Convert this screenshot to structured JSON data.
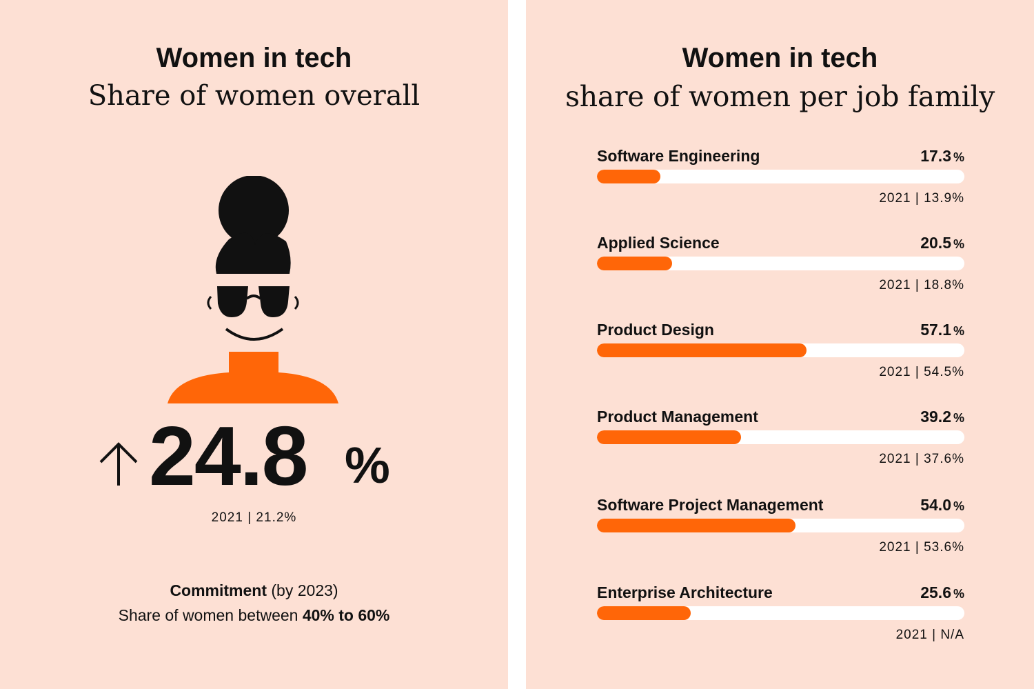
{
  "left": {
    "title": "Women in tech",
    "subtitle": "Share of women overall",
    "value": "24.8",
    "unit": "%",
    "trend_icon": "arrow-up-icon",
    "prev_year": "2021 | 21.2%",
    "commitment_bold": "Commitment",
    "commitment_rest": " (by 2023)",
    "share_text": "Share of women between ",
    "share_range": "40% to 60%",
    "illustration": "woman-with-sunglasses-icon"
  },
  "right": {
    "title": "Women in tech",
    "subtitle": "share of women per job family"
  },
  "colors": {
    "background": "#fde0d4",
    "accent": "#ff6608",
    "track": "#ffffff",
    "ink": "#111111"
  },
  "chart_data": {
    "type": "bar",
    "orientation": "horizontal",
    "title": "Women in tech",
    "subtitle": "share of women per job family",
    "xlim": [
      0,
      100
    ],
    "categories": [
      "Software Engineering",
      "Applied Science",
      "Product Design",
      "Product Management",
      "Software Project Management",
      "Enterprise Architecture"
    ],
    "values": [
      17.3,
      20.5,
      57.1,
      39.2,
      54.0,
      25.6
    ],
    "value_labels": [
      "17.3",
      "20.5",
      "57.1",
      "39.2",
      "54.0",
      "25.6"
    ],
    "unit": "%",
    "previous_year_labels": [
      "2021 | 13.9%",
      "2021 | 18.8%",
      "2021 | 54.5%",
      "2021 | 37.6%",
      "2021 | 53.6%",
      "2021 | N/A"
    ]
  }
}
